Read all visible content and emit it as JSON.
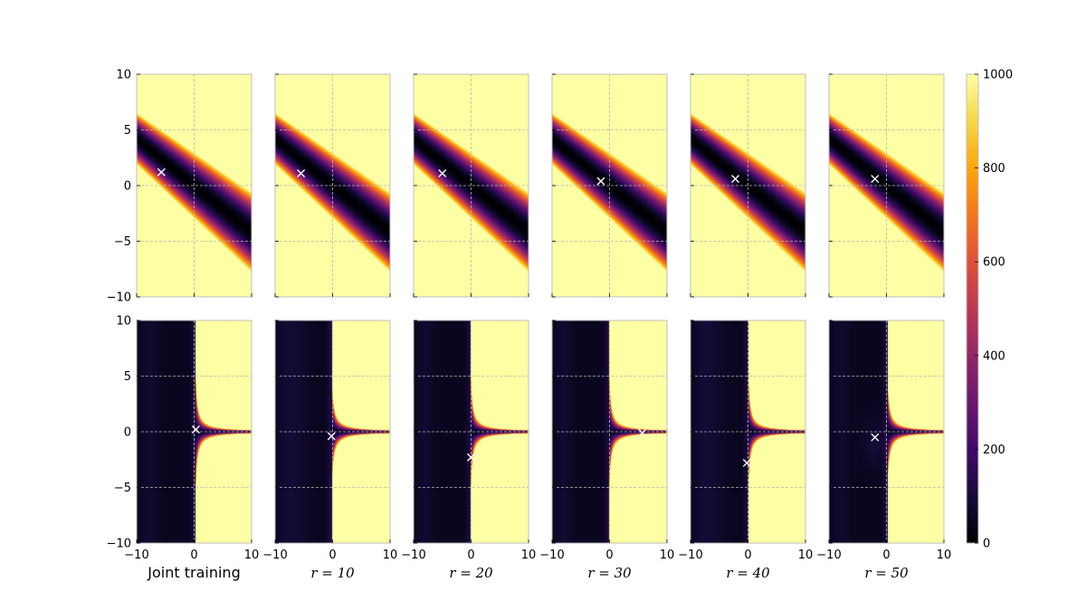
{
  "chart_data": {
    "type": "heatmap",
    "layout": {
      "rows": 2,
      "cols": 6
    },
    "xlim": [
      -10,
      10
    ],
    "ylim": [
      -10,
      10
    ],
    "xticks": [
      -10,
      0,
      10
    ],
    "yticks": [
      -10,
      -5,
      0,
      5,
      10
    ],
    "xtick_labels": [
      "−10",
      "0",
      "10"
    ],
    "ytick_labels": [
      "−10",
      "−5",
      "0",
      "5",
      "10"
    ],
    "grid": true,
    "colormap": "inferno",
    "colorbar": {
      "range": [
        0,
        1000
      ],
      "ticks": [
        0,
        200,
        400,
        600,
        800,
        1000
      ],
      "tick_labels": [
        "0",
        "200",
        "400",
        "600",
        "800",
        "1000"
      ]
    },
    "column_labels": [
      {
        "text": "Joint training",
        "math": false
      },
      {
        "text": "r = 10",
        "math": true
      },
      {
        "text": "r = 20",
        "math": true
      },
      {
        "text": "r = 30",
        "math": true
      },
      {
        "text": "r = 40",
        "math": true
      },
      {
        "text": "r = 50",
        "math": true
      }
    ],
    "row_patterns": [
      "diagonal-valley",
      "hyperbolic-cross"
    ],
    "markers": {
      "symbol": "x",
      "color": "#ffffff",
      "top_row": [
        [
          -5.7,
          1.2
        ],
        [
          -5.5,
          1.1
        ],
        [
          -5.0,
          1.1
        ],
        [
          -1.5,
          0.4
        ],
        [
          -2.2,
          0.6
        ],
        [
          -2.0,
          0.6
        ]
      ],
      "bottom_row": [
        [
          0.3,
          0.2
        ],
        [
          -0.2,
          -0.4
        ],
        [
          0.0,
          -2.3
        ],
        [
          5.7,
          -0.1
        ],
        [
          -0.2,
          -2.8
        ],
        [
          -2.0,
          -0.5
        ]
      ]
    },
    "colors": {
      "frame": "#bfbfbf",
      "grid": "#b8b8b8",
      "marker": "#ffffff"
    }
  }
}
